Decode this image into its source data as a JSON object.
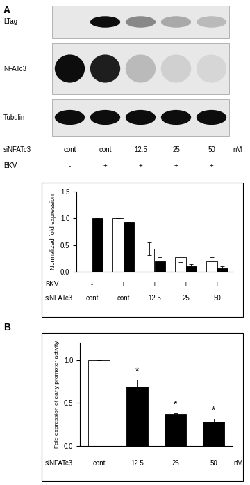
{
  "blot": {
    "panel": "A",
    "rows": [
      "LTag",
      "NFATc3",
      "Tubulin"
    ],
    "lane_rows": [
      {
        "label": "siNFATc3",
        "values": [
          "cont",
          "cont",
          "12.5",
          "25",
          "50"
        ],
        "unit": "nM"
      },
      {
        "label": "BKV",
        "values": [
          "-",
          "+",
          "+",
          "+",
          "+"
        ]
      }
    ]
  },
  "chart_data": [
    {
      "type": "bar",
      "y_label": "Normalized fold expression",
      "categories": [
        "cont",
        "cont",
        "12.5",
        "25",
        "50"
      ],
      "category_label": "siNFATc3",
      "extra_rows": [
        {
          "label": "BKV",
          "values": [
            "-",
            "+",
            "+",
            "+",
            "+"
          ]
        }
      ],
      "series": [
        {
          "color": "#ffffff",
          "values": [
            null,
            1.0,
            0.43,
            0.28,
            0.2
          ],
          "errors": [
            null,
            0.0,
            0.12,
            0.1,
            0.07
          ]
        },
        {
          "color": "#000000",
          "values": [
            1.0,
            0.92,
            0.2,
            0.1,
            0.07
          ],
          "errors": [
            0.0,
            0.01,
            0.08,
            0.04,
            0.03
          ]
        }
      ],
      "ylim": [
        0,
        1.5
      ],
      "yticks": [
        {
          "value": 0,
          "label": "0.0"
        },
        {
          "value": 0.5,
          "label": "0.5"
        },
        {
          "value": 1,
          "label": "1.0"
        },
        {
          "value": 1.5,
          "label": "1.5"
        }
      ]
    },
    {
      "type": "bar",
      "panel": "B",
      "y_label": "Fold expression of early promoter activity",
      "categories": [
        "cont",
        "12.5",
        "25",
        "50"
      ],
      "category_label": "siNFATc3",
      "unit": "nM",
      "values": [
        1.0,
        0.69,
        0.37,
        0.28
      ],
      "errors": [
        0.0,
        0.08,
        0.01,
        0.04
      ],
      "colors": [
        "#ffffff",
        "#000000",
        "#000000",
        "#000000"
      ],
      "annotations": [
        null,
        "*",
        "*",
        "*"
      ],
      "ylim": [
        0,
        1.2
      ],
      "yticks": [
        {
          "value": 0,
          "label": "0.0"
        },
        {
          "value": 0.5,
          "label": "0.5"
        },
        {
          "value": 1,
          "label": "1.0"
        }
      ]
    }
  ]
}
